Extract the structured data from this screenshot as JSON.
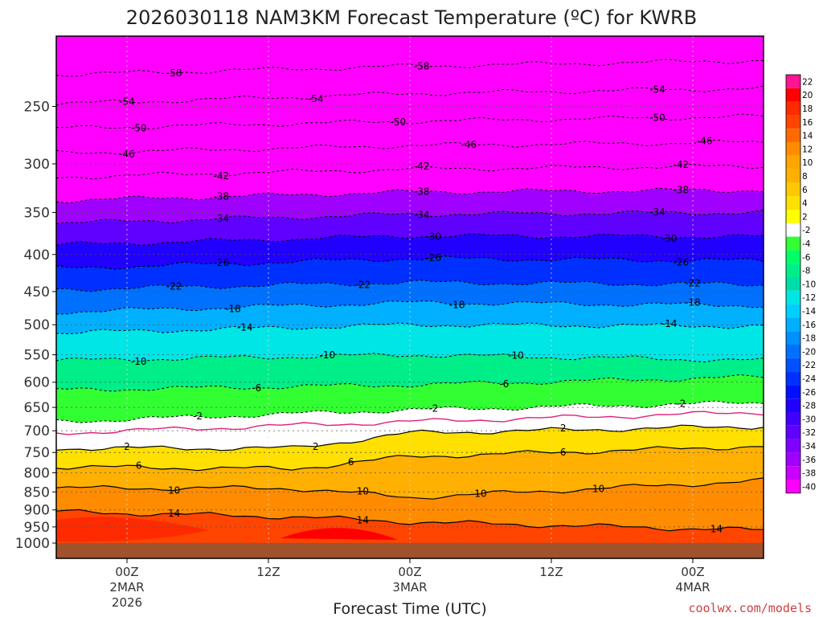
{
  "chart_data": {
    "type": "heatmap",
    "title": "2026030118 NAM3KM Forecast Temperature (ºC) for KWRB",
    "xlabel": "Forecast Time (UTC)",
    "ylabel": "",
    "y_scale": "log-pressure",
    "y_inverted": true,
    "y_ticks": [
      250,
      300,
      350,
      400,
      450,
      500,
      550,
      600,
      650,
      700,
      750,
      800,
      850,
      900,
      950,
      1000
    ],
    "ylim": [
      200,
      1000
    ],
    "x_ticks": [
      {
        "hour": 6,
        "label": "00Z",
        "sub1": "2MAR",
        "sub2": "2026"
      },
      {
        "hour": 18,
        "label": "12Z",
        "sub1": "",
        "sub2": ""
      },
      {
        "hour": 30,
        "label": "00Z",
        "sub1": "3MAR",
        "sub2": ""
      },
      {
        "hour": 42,
        "label": "12Z",
        "sub1": "",
        "sub2": ""
      },
      {
        "hour": 54,
        "label": "00Z",
        "sub1": "4MAR",
        "sub2": ""
      }
    ],
    "xlim_hours": [
      0,
      60
    ],
    "colorbar": {
      "levels": [
        22,
        20,
        18,
        16,
        14,
        12,
        10,
        8,
        6,
        4,
        2,
        -2,
        -4,
        -6,
        -8,
        -10,
        -12,
        -14,
        -16,
        -18,
        -20,
        -22,
        -24,
        -26,
        -28,
        -30,
        -32,
        -34,
        -36,
        -38,
        -40
      ],
      "colors": [
        "#ff1493",
        "#ff0000",
        "#ff2a00",
        "#ff4500",
        "#ff6a00",
        "#ff8c00",
        "#ffa500",
        "#ffb000",
        "#ffc800",
        "#ffe000",
        "#ffff00",
        "#ffffff",
        "#32ff32",
        "#00ff66",
        "#00ee88",
        "#00ddaa",
        "#00e5e5",
        "#00d0ff",
        "#00b0ff",
        "#0090ff",
        "#0070ff",
        "#0050ff",
        "#0030ff",
        "#0010ff",
        "#2000ff",
        "#4000ff",
        "#6000ff",
        "#8000ff",
        "#a000ff",
        "#c800ff",
        "#ff00ff"
      ]
    },
    "contours": [
      {
        "value": -58,
        "pressure_profile": [
          [
            0,
            226
          ],
          [
            30,
            220
          ],
          [
            60,
            216
          ]
        ],
        "labels": [
          {
            "hour": 10,
            "text": "-58"
          },
          {
            "hour": 31,
            "text": "-58"
          }
        ]
      },
      {
        "value": -54,
        "pressure_profile": [
          [
            0,
            248
          ],
          [
            30,
            240
          ],
          [
            60,
            236
          ]
        ],
        "labels": [
          {
            "hour": 6,
            "text": "-54"
          },
          {
            "hour": 22,
            "text": "-54"
          },
          {
            "hour": 51,
            "text": "-54"
          }
        ]
      },
      {
        "value": -50,
        "pressure_profile": [
          [
            0,
            268
          ],
          [
            30,
            262
          ],
          [
            60,
            258
          ]
        ],
        "labels": [
          {
            "hour": 7,
            "text": "-50"
          },
          {
            "hour": 29,
            "text": "-50"
          },
          {
            "hour": 51,
            "text": "-50"
          }
        ]
      },
      {
        "value": -46,
        "pressure_profile": [
          [
            0,
            290
          ],
          [
            30,
            283
          ],
          [
            60,
            280
          ]
        ],
        "labels": [
          {
            "hour": 6,
            "text": "-46"
          },
          {
            "hour": 35,
            "text": "-46"
          },
          {
            "hour": 55,
            "text": "-46"
          }
        ]
      },
      {
        "value": -42,
        "pressure_profile": [
          [
            0,
            313
          ],
          [
            30,
            305
          ],
          [
            60,
            302
          ]
        ],
        "labels": [
          {
            "hour": 14,
            "text": "-42"
          },
          {
            "hour": 31,
            "text": "-42"
          },
          {
            "hour": 53,
            "text": "-42"
          }
        ]
      },
      {
        "value": -38,
        "pressure_profile": [
          [
            0,
            337
          ],
          [
            30,
            328
          ],
          [
            60,
            326
          ]
        ],
        "labels": [
          {
            "hour": 14,
            "text": "-38"
          },
          {
            "hour": 31,
            "text": "-38"
          },
          {
            "hour": 53,
            "text": "-38"
          }
        ]
      },
      {
        "value": -34,
        "pressure_profile": [
          [
            0,
            362
          ],
          [
            30,
            352
          ],
          [
            60,
            350
          ]
        ],
        "labels": [
          {
            "hour": 14,
            "text": "-34"
          },
          {
            "hour": 31,
            "text": "-34"
          },
          {
            "hour": 51,
            "text": "-34"
          }
        ]
      },
      {
        "value": -30,
        "pressure_profile": [
          [
            0,
            388
          ],
          [
            30,
            377
          ],
          [
            60,
            378
          ]
        ],
        "labels": [
          {
            "hour": 32,
            "text": "-30"
          },
          {
            "hour": 52,
            "text": "-30"
          }
        ]
      },
      {
        "value": -26,
        "pressure_profile": [
          [
            0,
            418
          ],
          [
            30,
            405
          ],
          [
            60,
            408
          ]
        ],
        "labels": [
          {
            "hour": 14,
            "text": "-26"
          },
          {
            "hour": 32,
            "text": "-26"
          },
          {
            "hour": 53,
            "text": "-26"
          }
        ]
      },
      {
        "value": -22,
        "pressure_profile": [
          [
            0,
            447
          ],
          [
            30,
            437
          ],
          [
            60,
            440
          ]
        ],
        "labels": [
          {
            "hour": 10,
            "text": "-22"
          },
          {
            "hour": 26,
            "text": "-22"
          },
          {
            "hour": 54,
            "text": "-22"
          }
        ]
      },
      {
        "value": -18,
        "pressure_profile": [
          [
            0,
            480
          ],
          [
            30,
            466
          ],
          [
            60,
            470
          ]
        ],
        "labels": [
          {
            "hour": 15,
            "text": "-18"
          },
          {
            "hour": 34,
            "text": "-18"
          },
          {
            "hour": 54,
            "text": "-18"
          }
        ]
      },
      {
        "value": -14,
        "pressure_profile": [
          [
            0,
            513
          ],
          [
            30,
            500
          ],
          [
            60,
            502
          ]
        ],
        "labels": [
          {
            "hour": 16,
            "text": "-14"
          },
          {
            "hour": 52,
            "text": "-14"
          }
        ]
      },
      {
        "value": -10,
        "pressure_profile": [
          [
            0,
            560
          ],
          [
            30,
            550
          ],
          [
            60,
            560
          ]
        ],
        "labels": [
          {
            "hour": 7,
            "text": "-10"
          },
          {
            "hour": 23,
            "text": "-10"
          },
          {
            "hour": 39,
            "text": "-10"
          }
        ]
      },
      {
        "value": -6,
        "pressure_profile": [
          [
            0,
            615
          ],
          [
            30,
            605
          ],
          [
            60,
            590
          ]
        ],
        "labels": [
          {
            "hour": 17,
            "text": "-6"
          },
          {
            "hour": 38,
            "text": "-6"
          }
        ]
      },
      {
        "value": -2,
        "pressure_profile": [
          [
            0,
            680
          ],
          [
            30,
            655
          ],
          [
            60,
            640
          ]
        ],
        "labels": [
          {
            "hour": 12,
            "text": "-2"
          },
          {
            "hour": 32,
            "text": "-2"
          },
          {
            "hour": 53,
            "text": "-2"
          }
        ]
      },
      {
        "value": 0,
        "pressure_profile": [
          [
            0,
            705
          ],
          [
            30,
            680
          ],
          [
            60,
            660
          ]
        ],
        "labels": []
      },
      {
        "value": 2,
        "pressure_profile": [
          [
            0,
            740
          ],
          [
            20,
            740
          ],
          [
            30,
            705
          ],
          [
            60,
            690
          ]
        ],
        "labels": [
          {
            "hour": 6,
            "text": "2"
          },
          {
            "hour": 22,
            "text": "2"
          },
          {
            "hour": 43,
            "text": "2"
          }
        ]
      },
      {
        "value": 6,
        "pressure_profile": [
          [
            0,
            785
          ],
          [
            20,
            790
          ],
          [
            30,
            760
          ],
          [
            60,
            735
          ]
        ],
        "labels": [
          {
            "hour": 7,
            "text": "6"
          },
          {
            "hour": 25,
            "text": "6"
          },
          {
            "hour": 43,
            "text": "6"
          }
        ]
      },
      {
        "value": 10,
        "pressure_profile": [
          [
            0,
            840
          ],
          [
            20,
            840
          ],
          [
            30,
            865
          ],
          [
            60,
            820
          ]
        ],
        "labels": [
          {
            "hour": 10,
            "text": "10"
          },
          {
            "hour": 26,
            "text": "10"
          },
          {
            "hour": 36,
            "text": "10"
          },
          {
            "hour": 46,
            "text": "10"
          }
        ]
      },
      {
        "value": 14,
        "pressure_profile": [
          [
            0,
            905
          ],
          [
            20,
            920
          ],
          [
            30,
            935
          ],
          [
            60,
            960
          ]
        ],
        "labels": [
          {
            "hour": 10,
            "text": "14"
          },
          {
            "hour": 26,
            "text": "14"
          },
          {
            "hour": 56,
            "text": "14"
          }
        ]
      }
    ],
    "grid": true,
    "legend": "right-colorbar"
  },
  "credit": "coolwx.com/models"
}
